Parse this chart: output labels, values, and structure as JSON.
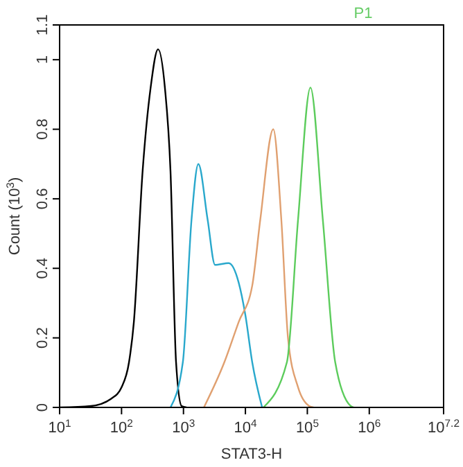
{
  "chart_data": {
    "type": "line",
    "annotations": [
      "P1"
    ],
    "xlabel": "STAT3-H",
    "ylabel": "Count (10$^{3}$)",
    "log": "x",
    "xlim": [
      10,
      15848932
    ],
    "xticks": [
      {
        "value": 10,
        "label": "10$^{1}$"
      },
      {
        "value": 100,
        "label": "10$^{2}$"
      },
      {
        "value": 1000,
        "label": "10$^{3}$"
      },
      {
        "value": 10000,
        "label": "10$^{4}$"
      },
      {
        "value": 100000,
        "label": "10$^{5}$"
      },
      {
        "value": 1000000,
        "label": "10$^{6}$"
      },
      {
        "value": 15848932,
        "label": "10$^{7.2}$"
      }
    ],
    "ylim": [
      0,
      1.1
    ],
    "yticks": [
      0,
      0.2,
      0.4,
      0.6,
      0.8,
      1,
      1.1
    ],
    "grid": false,
    "marker": "none",
    "line_style": "solid",
    "series": [
      {
        "color": "#000000",
        "x": [
          10,
          32,
          68,
          100,
          132,
          158,
          219,
          295,
          389,
          501,
          617,
          759,
          933,
          1122
        ],
        "values": [
          0,
          0.004,
          0.025,
          0.058,
          0.13,
          0.245,
          0.68,
          0.92,
          1.03,
          0.92,
          0.68,
          0.13,
          0.004,
          0
        ]
      },
      {
        "color": "#29a8cc",
        "x": [
          617,
          977,
          1349,
          1738,
          2455,
          3236,
          5370,
          7762,
          10000,
          12883,
          18621
        ],
        "values": [
          0,
          0.13,
          0.54,
          0.7,
          0.54,
          0.41,
          0.415,
          0.36,
          0.265,
          0.13,
          0
        ]
      },
      {
        "color": "#e0a070",
        "x": [
          2138,
          4571,
          7762,
          12883,
          17378,
          28184,
          38019,
          48978,
          70795,
          107152,
          125893
        ],
        "values": [
          0,
          0.13,
          0.245,
          0.35,
          0.54,
          0.8,
          0.54,
          0.195,
          0.058,
          0.004,
          0
        ]
      },
      {
        "color": "#5ccc5c",
        "x": [
          19498,
          46774,
          70795,
          112202,
          177828,
          281838,
          501187,
          562341
        ],
        "values": [
          0,
          0.13,
          0.54,
          0.92,
          0.54,
          0.13,
          0.004,
          0
        ]
      }
    ]
  }
}
